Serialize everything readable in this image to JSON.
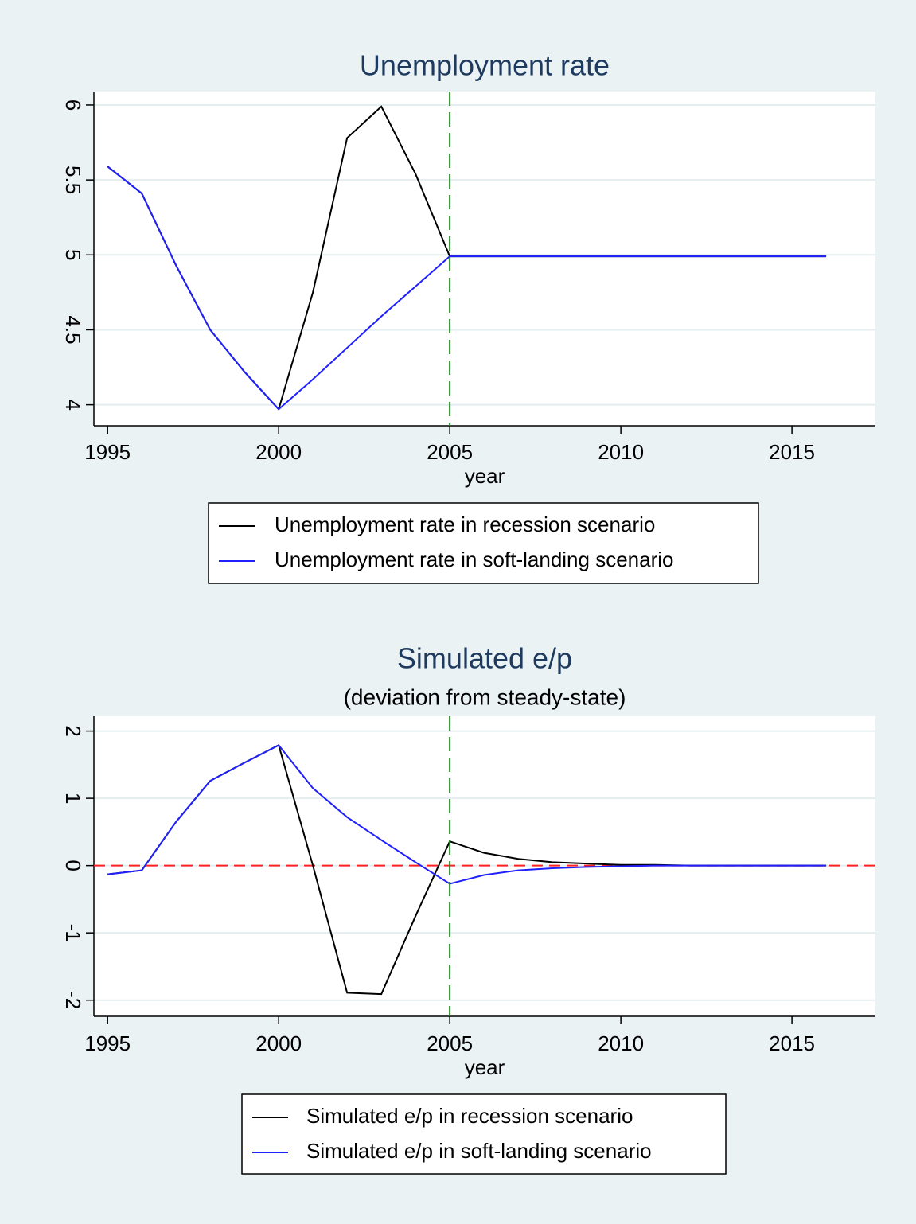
{
  "chart_data": [
    {
      "type": "line",
      "title": "Unemployment rate",
      "xlabel": "year",
      "x": [
        1995,
        1996,
        1997,
        1998,
        1999,
        2000,
        2001,
        2002,
        2003,
        2004,
        2005,
        2006,
        2007,
        2008,
        2009,
        2010,
        2011,
        2012,
        2013,
        2014,
        2015,
        2016
      ],
      "series": [
        {
          "name": "Unemployment rate in recession scenario",
          "color": "#000000",
          "values": [
            5.59,
            5.41,
            4.93,
            4.5,
            4.22,
            3.97,
            4.75,
            5.78,
            5.99,
            5.54,
            4.99,
            4.99,
            4.99,
            4.99,
            4.99,
            4.99,
            4.99,
            4.99,
            4.99,
            4.99,
            4.99,
            4.99
          ]
        },
        {
          "name": "Unemployment rate in soft-landing scenario",
          "color": "#2020ff",
          "values": [
            5.59,
            5.41,
            4.93,
            4.5,
            4.22,
            3.97,
            4.17,
            4.38,
            4.59,
            4.79,
            4.99,
            4.99,
            4.99,
            4.99,
            4.99,
            4.99,
            4.99,
            4.99,
            4.99,
            4.99,
            4.99,
            4.99
          ]
        }
      ],
      "xlim": [
        1994.6,
        2017.44
      ],
      "xticks": [
        1995,
        2000,
        2005,
        2010,
        2015
      ],
      "ylim": [
        3.86,
        6.09
      ],
      "yticks": [
        4,
        4.5,
        5,
        5.5,
        6
      ],
      "grid": true,
      "vline": 2005,
      "vline_color": "#1f8a1f"
    },
    {
      "type": "line",
      "title": "Simulated e/p",
      "subtitle": "(deviation from steady-state)",
      "xlabel": "year",
      "x": [
        1995,
        1996,
        1997,
        1998,
        1999,
        2000,
        2001,
        2002,
        2003,
        2004,
        2005,
        2006,
        2007,
        2008,
        2009,
        2010,
        2011,
        2012,
        2013,
        2014,
        2015,
        2016
      ],
      "series": [
        {
          "name": "Simulated e/p in recession scenario",
          "color": "#000000",
          "values": [
            -0.13,
            -0.07,
            0.65,
            1.26,
            1.53,
            1.79,
            0.0,
            -1.89,
            -1.91,
            -0.75,
            0.36,
            0.19,
            0.1,
            0.05,
            0.03,
            0.01,
            0.01,
            0,
            0,
            0,
            0,
            0
          ]
        },
        {
          "name": "Simulated e/p in soft-landing scenario",
          "color": "#2020ff",
          "values": [
            -0.13,
            -0.07,
            0.65,
            1.26,
            1.53,
            1.79,
            1.15,
            0.72,
            0.38,
            0.05,
            -0.27,
            -0.14,
            -0.07,
            -0.04,
            -0.02,
            -0.01,
            0,
            0,
            0,
            0,
            0,
            0
          ]
        }
      ],
      "xlim": [
        1994.6,
        2017.44
      ],
      "xticks": [
        1995,
        2000,
        2005,
        2010,
        2015
      ],
      "ylim": [
        -2.24,
        2.22
      ],
      "yticks": [
        -2,
        -1,
        0,
        1,
        2
      ],
      "grid": true,
      "vline": 2005,
      "vline_color": "#1f8a1f",
      "hline": 0,
      "hline_color": "#ff2020"
    }
  ]
}
